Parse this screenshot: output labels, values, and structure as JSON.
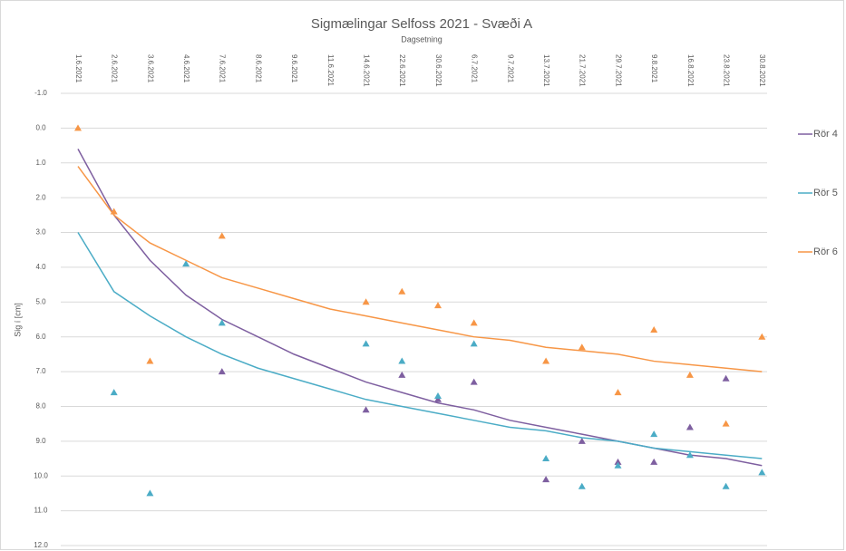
{
  "chart_data": {
    "type": "scatter",
    "title": "Sigmælingar Selfoss 2021 - Svæði A",
    "x_label": "Dagsetning",
    "y_label": "Sig í [cm]",
    "categories": [
      "1.6.2021",
      "2.6.2021",
      "3.6.2021",
      "4.6.2021",
      "7.6.2021",
      "8.6.2021",
      "9.6.2021",
      "11.6.2021",
      "14.6.2021",
      "22.6.2021",
      "30.6.2021",
      "6.7.2021",
      "9.7.2021",
      "13.7.2021",
      "21.7.2021",
      "29.7.2021",
      "9.8.2021",
      "16.8.2021",
      "23.8.2021",
      "30.8.2021"
    ],
    "ylim": [
      -1,
      12
    ],
    "y_inverted": true,
    "grid": true,
    "legend": "right",
    "yticks": [
      {
        "value": -1,
        "label": "-1.0"
      },
      {
        "value": 0,
        "label": "0.0"
      },
      {
        "value": 1,
        "label": "1.0"
      },
      {
        "value": 2,
        "label": "2.0"
      },
      {
        "value": 3,
        "label": "3.0"
      },
      {
        "value": 4,
        "label": "4.0"
      },
      {
        "value": 5,
        "label": "5.0"
      },
      {
        "value": 6,
        "label": "6.0"
      },
      {
        "value": 7,
        "label": "7.0"
      },
      {
        "value": 8,
        "label": "8.0"
      },
      {
        "value": 9,
        "label": "9.0"
      },
      {
        "value": 10,
        "label": "10.0"
      },
      {
        "value": 11,
        "label": "11.0"
      },
      {
        "value": 12,
        "label": "12.0"
      }
    ],
    "series": [
      {
        "name": "Rör 4",
        "color": "#7e5fa0",
        "values": [
          null,
          null,
          null,
          null,
          7.0,
          null,
          null,
          null,
          8.1,
          7.1,
          7.8,
          7.3,
          null,
          10.1,
          9.0,
          9.6,
          9.6,
          8.6,
          7.2,
          null
        ],
        "trend": [
          0.6,
          2.5,
          3.8,
          4.8,
          5.5,
          6.0,
          6.5,
          6.9,
          7.3,
          7.6,
          7.9,
          8.1,
          8.4,
          8.6,
          8.8,
          9.0,
          9.2,
          9.4,
          9.5,
          9.7
        ]
      },
      {
        "name": "Rör 5",
        "color": "#4bacc6",
        "values": [
          null,
          7.6,
          10.5,
          3.9,
          5.6,
          null,
          null,
          null,
          6.2,
          6.7,
          7.7,
          6.2,
          null,
          9.5,
          10.3,
          9.7,
          8.8,
          9.4,
          10.3,
          9.9
        ],
        "trend": [
          3.0,
          4.7,
          5.4,
          6.0,
          6.5,
          6.9,
          7.2,
          7.5,
          7.8,
          8.0,
          8.2,
          8.4,
          8.6,
          8.7,
          8.9,
          9.0,
          9.2,
          9.3,
          9.4,
          9.5
        ]
      },
      {
        "name": "Rör 6",
        "color": "#f79646",
        "values": [
          0.0,
          2.4,
          6.7,
          null,
          3.1,
          null,
          null,
          null,
          5.0,
          4.7,
          5.1,
          5.6,
          null,
          6.7,
          6.3,
          7.6,
          5.8,
          7.1,
          8.5,
          6.0
        ],
        "trend": [
          1.1,
          2.5,
          3.3,
          3.8,
          4.3,
          4.6,
          4.9,
          5.2,
          5.4,
          5.6,
          5.8,
          6.0,
          6.1,
          6.3,
          6.4,
          6.5,
          6.7,
          6.8,
          6.9,
          7.0
        ]
      }
    ]
  }
}
